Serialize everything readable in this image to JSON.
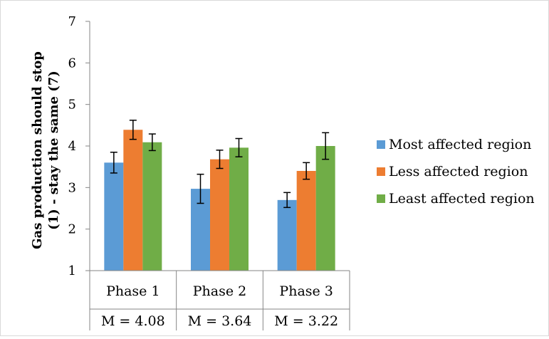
{
  "chart_data": {
    "type": "bar",
    "ylabel": "Gas production should stop (1) - stay the same (7)",
    "ylabel_lines": [
      "Gas production should stop",
      "(1) - stay the same (7)"
    ],
    "ylim": [
      1,
      7
    ],
    "yticks": [
      "1",
      "2",
      "3",
      "4",
      "5",
      "6",
      "7"
    ],
    "grid": false,
    "legend_position": "right",
    "categories": [
      "Phase 1",
      "Phase 2",
      "Phase 3"
    ],
    "category_means": [
      "M = 4.08",
      "M = 3.64",
      "M = 3.22"
    ],
    "series": [
      {
        "name": "Most affected region",
        "color": "#5b9bd5",
        "values": [
          3.6,
          2.97,
          2.7
        ],
        "errors": [
          0.25,
          0.35,
          0.18
        ]
      },
      {
        "name": "Less affected region",
        "color": "#ed7d31",
        "values": [
          4.39,
          3.68,
          3.4
        ],
        "errors": [
          0.23,
          0.22,
          0.2
        ]
      },
      {
        "name": "Least affected region",
        "color": "#70ad47",
        "values": [
          4.09,
          3.96,
          4.0
        ],
        "errors": [
          0.2,
          0.22,
          0.32
        ]
      }
    ]
  }
}
